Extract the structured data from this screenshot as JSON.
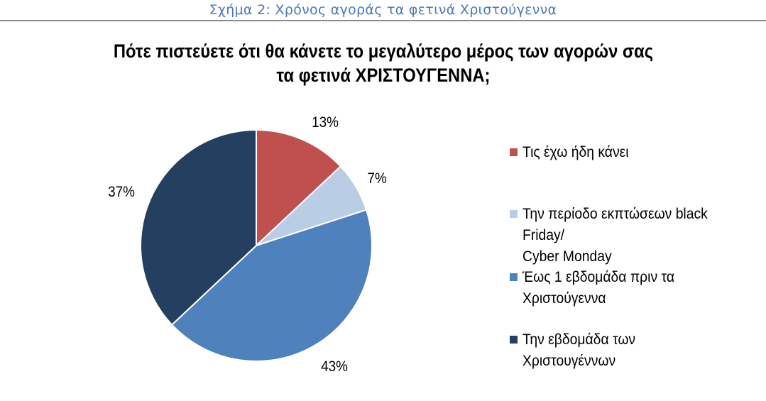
{
  "figure_caption": "Σχήμα 2: Χρόνος αγοράς τα φετινά Χριστούγεννα",
  "chart_data": {
    "type": "pie",
    "title": "Πότε πιστεύετε ότι θα κάνετε το μεγαλύτερο μέρος των αγορών σας τα φετινά ΧΡΙΣΤΟΥΓΕΝΝΑ;",
    "title_lines": [
      "Πότε πιστεύετε ότι θα κάνετε το μεγαλύτερο μέρος των αγορών σας",
      "τα φετινά ΧΡΙΣΤΟΥΓΕΝΝΑ;"
    ],
    "categories": [
      "Τις έχω ήδη κάνει",
      "Την περίοδο εκπτώσεων black Friday/ Cyber Monday",
      "Έως 1 εβδομάδα πριν τα Χριστούγεννα",
      "Την εβδομάδα των Χριστουγέννων"
    ],
    "values": [
      13,
      7,
      43,
      37
    ],
    "labels": [
      "13%",
      "7%",
      "43%",
      "37%"
    ],
    "colors": [
      "#c0504d",
      "#b9cde5",
      "#4f81bd",
      "#243f60"
    ],
    "start_angle": "12 o'clock",
    "direction": "clockwise",
    "legend_position": "right"
  },
  "legend": [
    {
      "text": "Τις έχω ήδη κάνει",
      "color": "#c0504d"
    },
    {
      "text": "Την περίοδο εκπτώσεων black\nFriday/\nCyber Monday",
      "color": "#b9cde5"
    },
    {
      "text": "Έως 1 εβδομάδα πριν τα\nΧριστούγεννα",
      "color": "#4f81bd"
    },
    {
      "text": "Την εβδομάδα των\nΧριστουγέννων",
      "color": "#243f60"
    }
  ]
}
